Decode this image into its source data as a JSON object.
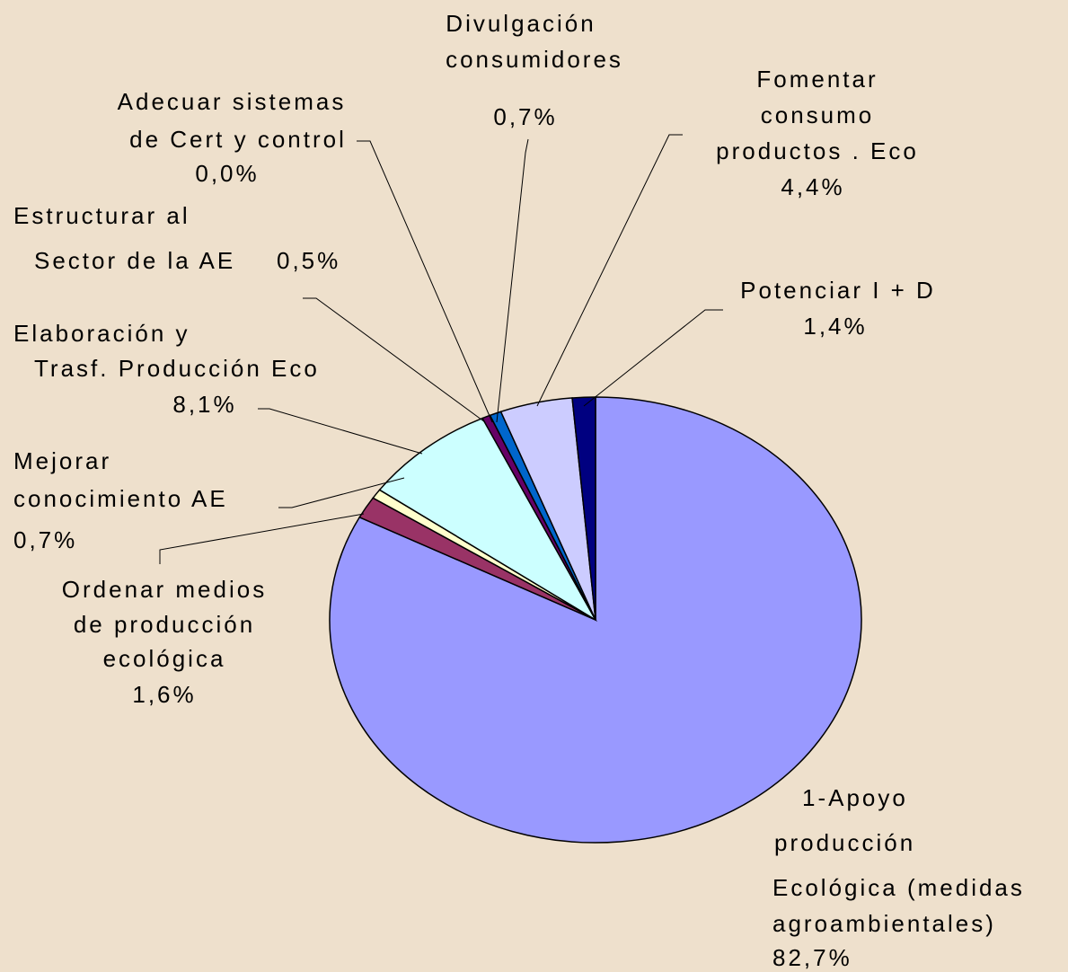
{
  "chart_data": {
    "type": "pie",
    "categories": [
      [
        "1-Apoyo",
        "producción",
        "Ecológica (medidas",
        "agroambientales)"
      ],
      [
        "Ordenar medios",
        "de producción",
        "ecológica"
      ],
      [
        "Mejorar",
        "conocimiento  AE"
      ],
      [
        "Elaboración y",
        "Trasf. Producción  Eco"
      ],
      [
        "Estructurar al",
        "Sector de la AE"
      ],
      [
        "Adecuar sistemas",
        "de Cert y control"
      ],
      [
        "Divulgación",
        "consumidores"
      ],
      [
        "Fomentar",
        "consumo",
        "productos . Eco"
      ],
      [
        "Potenciar I + D"
      ]
    ],
    "values": [
      82.7,
      1.6,
      0.7,
      8.1,
      0.5,
      0.0,
      0.7,
      4.4,
      1.4
    ],
    "value_labels": [
      "82,7%",
      "1,6%",
      "0,7%",
      "8,1%",
      "0,5%",
      "0,0%",
      "0,7%",
      "4,4%",
      "1,4%"
    ],
    "colors": [
      "#9999ff",
      "#993366",
      "#ffffcc",
      "#ccffff",
      "#660066",
      "#ff8080",
      "#0066cc",
      "#ccccff",
      "#000080"
    ]
  }
}
